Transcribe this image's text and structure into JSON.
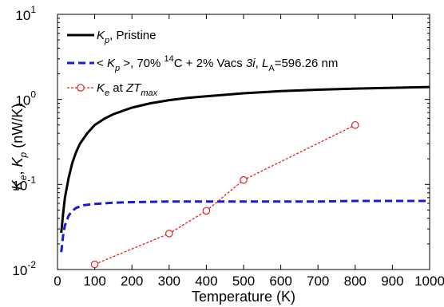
{
  "chart_data": {
    "type": "line",
    "xlabel": "Temperature (K)",
    "ylabel": "K_e, K_p (nW/K)",
    "xlim": [
      0,
      1000
    ],
    "ylim": [
      0.01,
      10
    ],
    "yscale": "log",
    "grid": false,
    "legend_placement": "top-left",
    "x_ticks": [
      "0",
      "100",
      "200",
      "300",
      "400",
      "500",
      "600",
      "700",
      "800",
      "900",
      "1000"
    ],
    "y_ticks": [
      "-2",
      "-1",
      "0",
      "1"
    ],
    "y_tick_base": "10",
    "series": [
      {
        "name": "K_p, Pristine",
        "legend_main": "K",
        "legend_sub": "p",
        "legend_rest": ", Pristine",
        "color": "#000000",
        "style": "solid",
        "marker": "none",
        "x": [
          10,
          15,
          20,
          30,
          40,
          50,
          60,
          80,
          100,
          125,
          150,
          200,
          250,
          300,
          350,
          400,
          500,
          600,
          700,
          800,
          900,
          1000
        ],
        "y": [
          0.027,
          0.045,
          0.07,
          0.12,
          0.18,
          0.24,
          0.3,
          0.4,
          0.5,
          0.59,
          0.67,
          0.8,
          0.9,
          0.98,
          1.04,
          1.09,
          1.18,
          1.25,
          1.3,
          1.34,
          1.37,
          1.4
        ]
      },
      {
        "name": "< K_p >, 70% 14C + 2% Vacs 3i, L_A=596.26 nm",
        "legend_pre": "< ",
        "legend_main": "K",
        "legend_sub": "p",
        "legend_mid": " >, 70% ",
        "legend_sup": "14",
        "legend_mid2": "C + 2% Vacs ",
        "legend_italic": "3i",
        "legend_mid3": ", ",
        "legend_main2": "L",
        "legend_sub2": "A",
        "legend_rest": "=596.26 nm",
        "color": "#1a1ad6",
        "style": "dashed",
        "marker": "none",
        "x": [
          10,
          15,
          20,
          30,
          40,
          50,
          70,
          100,
          150,
          200,
          300,
          400,
          500,
          600,
          700,
          800,
          900,
          1000
        ],
        "y": [
          0.016,
          0.025,
          0.033,
          0.043,
          0.049,
          0.053,
          0.057,
          0.059,
          0.061,
          0.062,
          0.063,
          0.063,
          0.063,
          0.063,
          0.063,
          0.064,
          0.064,
          0.064
        ]
      },
      {
        "name": "K_e at ZT_max",
        "legend_main": "K",
        "legend_sub": "e",
        "legend_mid": "  at ",
        "legend_main2": "ZT",
        "legend_sub2": "max",
        "color": "#e0201f",
        "style": "dotted",
        "marker": "circle",
        "x": [
          100,
          300,
          400,
          500,
          800
        ],
        "y": [
          0.0115,
          0.0265,
          0.049,
          0.113,
          0.5
        ]
      }
    ]
  }
}
